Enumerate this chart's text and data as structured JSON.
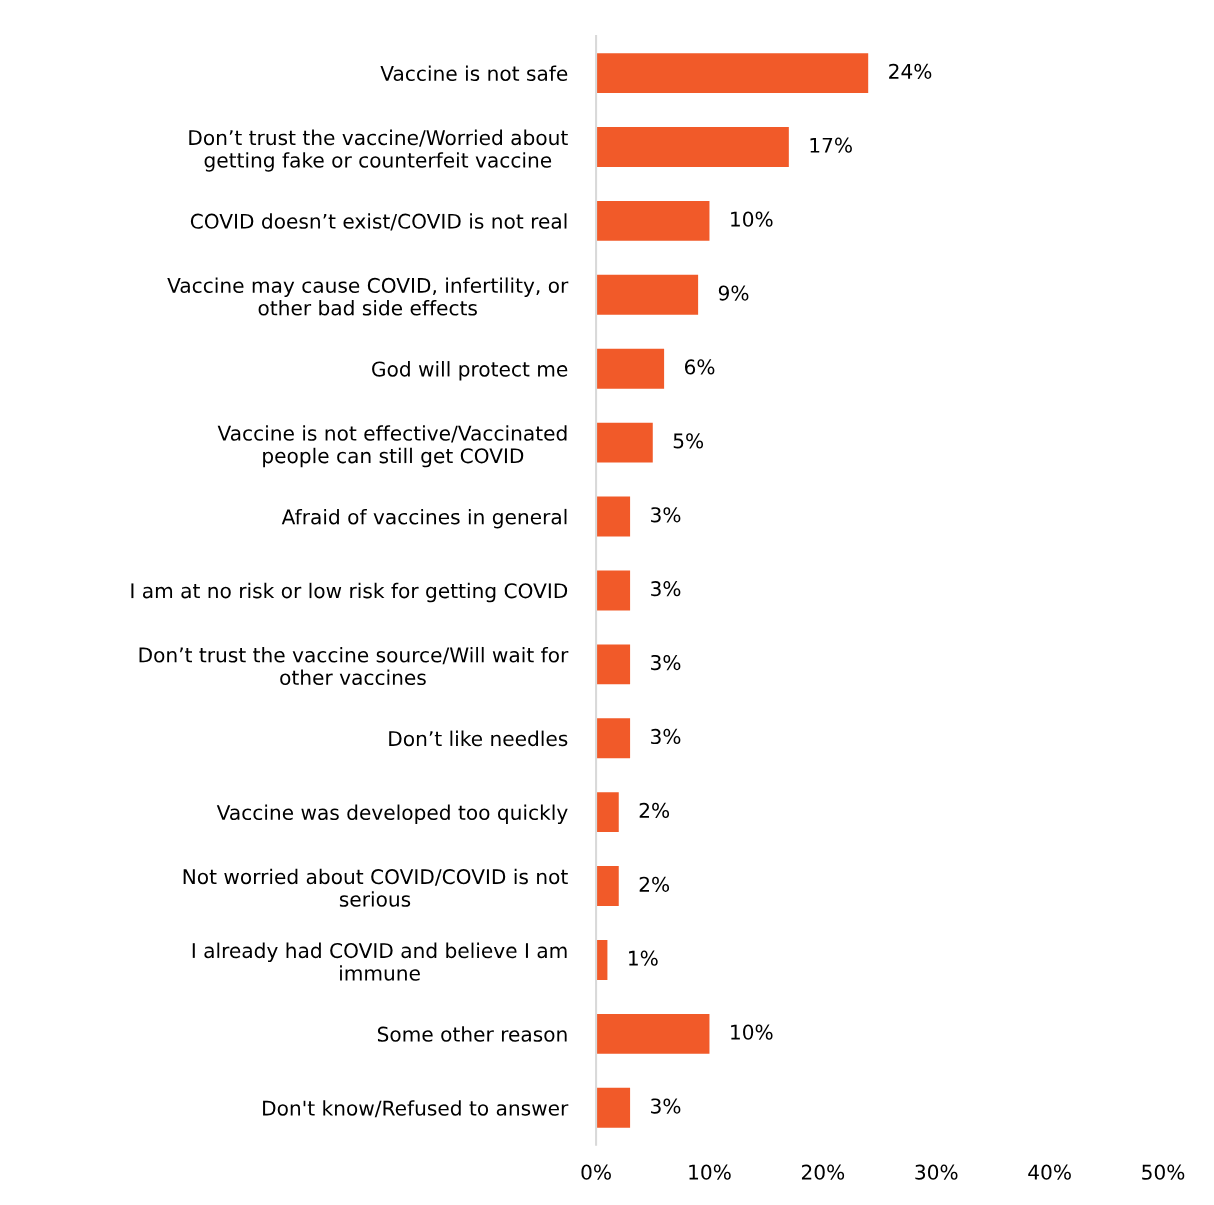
{
  "chart_data": {
    "type": "bar",
    "orientation": "horizontal",
    "categories": [
      "Vaccine is not safe",
      "Don’t trust the vaccine/Worried about\ngetting fake or counterfeit vaccine",
      "COVID doesn’t exist/COVID is not real",
      "Vaccine may cause COVID, infertility, or\nother bad side effects",
      "God will protect me",
      "Vaccine is not effective/Vaccinated\npeople can still get COVID",
      "Afraid of vaccines in general",
      "I am at no risk or low risk for getting COVID",
      "Don’t trust the vaccine source/Will wait for\nother vaccines",
      "Don’t like needles",
      "Vaccine was developed too quickly",
      "Not worried about COVID/COVID is not\nserious",
      "I already had COVID and believe I am\nimmune",
      "Some other reason",
      "Don't know/Refused to answer"
    ],
    "values": [
      24,
      17,
      10,
      9,
      6,
      5,
      3,
      3,
      3,
      3,
      2,
      2,
      1,
      10,
      3
    ],
    "value_labels": [
      "24%",
      "17%",
      "10%",
      "9%",
      "6%",
      "5%",
      "3%",
      "3%",
      "3%",
      "3%",
      "2%",
      "2%",
      "1%",
      "10%",
      "3%"
    ],
    "color": "#f15a29",
    "xlim": [
      0,
      50
    ],
    "xticks": [
      {
        "value": 0,
        "label": "0%"
      },
      {
        "value": 10,
        "label": "10%"
      },
      {
        "value": 20,
        "label": "20%"
      },
      {
        "value": 30,
        "label": "30%"
      },
      {
        "value": 40,
        "label": "40%"
      },
      {
        "value": 50,
        "label": "50%"
      }
    ],
    "grid": false,
    "legend": false
  }
}
